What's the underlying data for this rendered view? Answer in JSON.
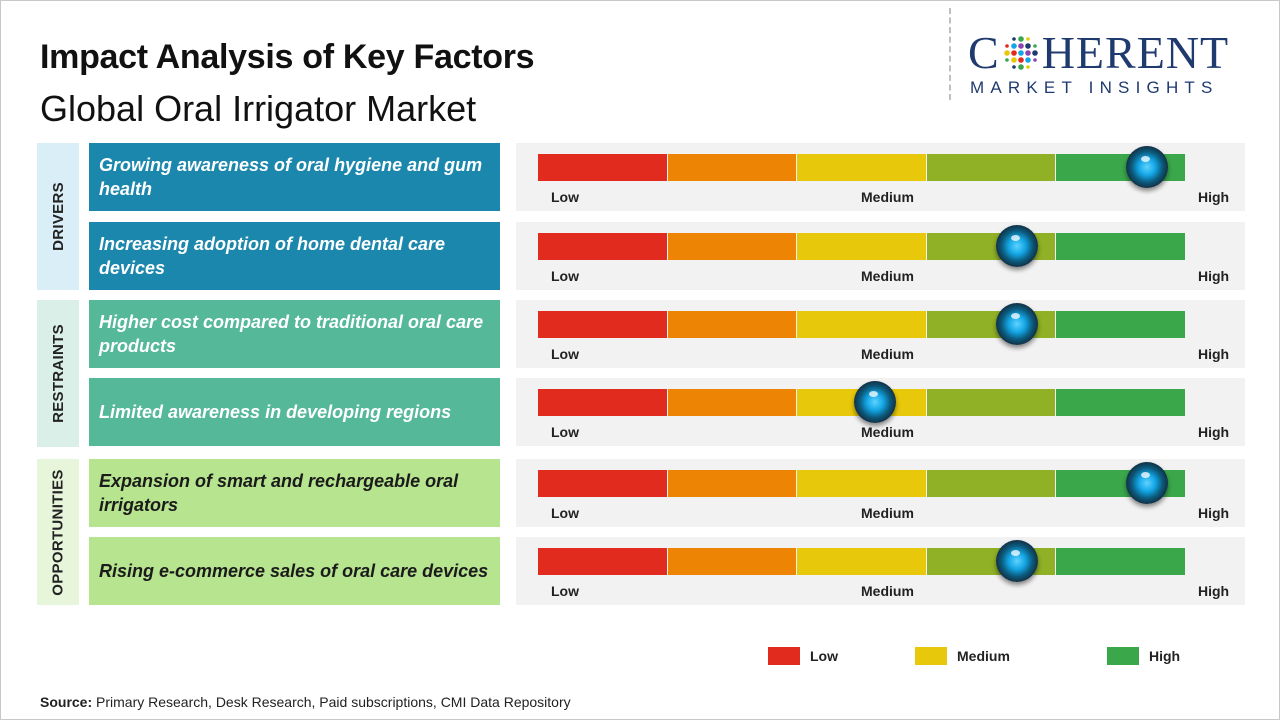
{
  "header": {
    "title": "Impact Analysis of Key Factors",
    "subtitle": "Global Oral Irrigator Market"
  },
  "logo": {
    "word_start": "C",
    "word_end": "HERENT",
    "tagline": "MARKET INSIGHTS"
  },
  "colors": {
    "drivers": "#1c87ad",
    "restraints": "#54b899",
    "opportunities": "#b7e48f",
    "drivers_cat_bg": "#daeef7",
    "restraints_cat_bg": "#d9efe8",
    "opportunities_cat_bg": "#e7f6da",
    "scale": [
      "#e12b1f",
      "#ee8404",
      "#e8c80a",
      "#90b026",
      "#3aa74a"
    ]
  },
  "chart_data": {
    "type": "impact-scale",
    "scale_levels": [
      "Low",
      "Medium",
      "High"
    ],
    "scale_range": [
      0,
      5
    ],
    "categories": [
      {
        "name": "DRIVERS",
        "key": "drivers"
      },
      {
        "name": "RESTRAINTS",
        "key": "restraints"
      },
      {
        "name": "OPPORTUNITIES",
        "key": "opportunities"
      }
    ],
    "factors": [
      {
        "category": "drivers",
        "label": "Growing awareness of oral hygiene and gum health",
        "impact": 4.7
      },
      {
        "category": "drivers",
        "label": "Increasing adoption of home dental care devices",
        "impact": 3.7
      },
      {
        "category": "restraints",
        "label": "Higher cost compared to traditional oral care products",
        "impact": 3.7
      },
      {
        "category": "restraints",
        "label": "Limited awareness in developing regions",
        "impact": 2.6
      },
      {
        "category": "opportunities",
        "label": "Expansion of smart and rechargeable oral irrigators",
        "impact": 4.7
      },
      {
        "category": "opportunities",
        "label": "Rising e-commerce sales of oral care devices",
        "impact": 3.7
      }
    ],
    "legend": [
      {
        "label": "Low",
        "color": "#e12b1f"
      },
      {
        "label": "Medium",
        "color": "#e8c80a"
      },
      {
        "label": "High",
        "color": "#3aa74a"
      }
    ]
  },
  "footer": {
    "source_label": "Source:",
    "source_text": " Primary Research, Desk Research, Paid subscriptions, CMI Data Repository"
  }
}
